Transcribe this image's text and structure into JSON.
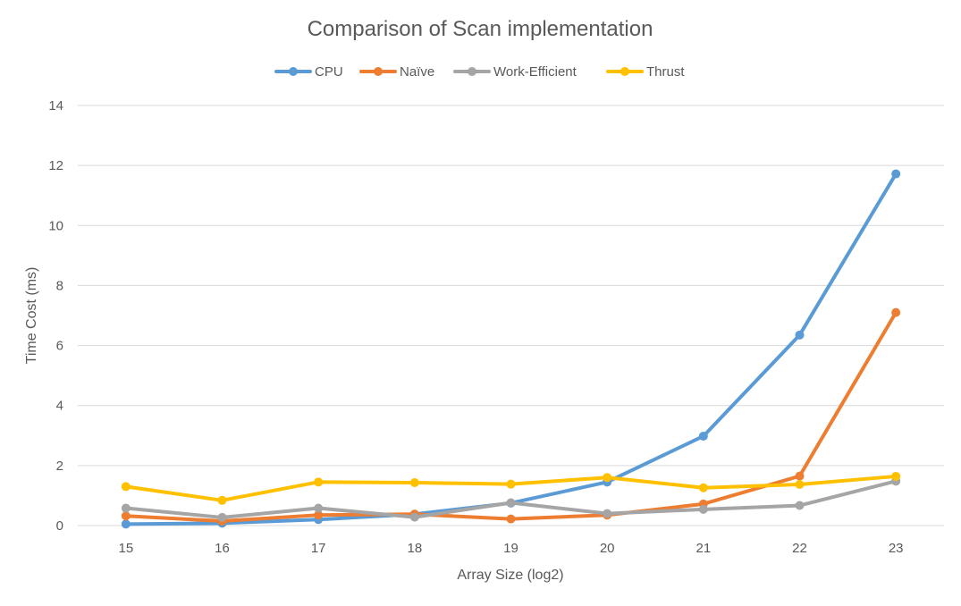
{
  "chart_data": {
    "type": "line",
    "title": "Comparison of Scan implementation",
    "xlabel": "Array Size (log2)",
    "ylabel": "Time Cost (ms)",
    "categories": [
      "15",
      "16",
      "17",
      "18",
      "19",
      "20",
      "21",
      "22",
      "23"
    ],
    "ylim": [
      0,
      14
    ],
    "yticks": [
      0,
      2,
      4,
      6,
      8,
      10,
      12,
      14
    ],
    "grid": true,
    "legend_position": "top",
    "series": [
      {
        "name": "CPU",
        "color": "#5B9BD5",
        "values": [
          0.05,
          0.08,
          0.2,
          0.38,
          0.75,
          1.45,
          2.98,
          6.35,
          11.72
        ]
      },
      {
        "name": "Naïve",
        "color": "#ED7D31",
        "values": [
          0.32,
          0.15,
          0.35,
          0.38,
          0.22,
          0.35,
          0.72,
          1.65,
          7.1
        ]
      },
      {
        "name": "Work-Efficient",
        "color": "#A5A5A5",
        "values": [
          0.58,
          0.27,
          0.58,
          0.28,
          0.76,
          0.4,
          0.54,
          0.67,
          1.48
        ]
      },
      {
        "name": "Thrust",
        "color": "#FFC000",
        "values": [
          1.3,
          0.84,
          1.45,
          1.43,
          1.38,
          1.6,
          1.26,
          1.37,
          1.64
        ]
      }
    ]
  }
}
